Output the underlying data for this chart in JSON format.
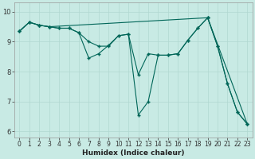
{
  "xlabel": "Humidex (Indice chaleur)",
  "bg_color": "#c8eae4",
  "grid_color": "#b0d8d0",
  "line_color": "#006658",
  "xlim": [
    -0.5,
    23.5
  ],
  "ylim": [
    5.8,
    10.3
  ],
  "xticks": [
    0,
    1,
    2,
    3,
    4,
    5,
    6,
    7,
    8,
    9,
    10,
    11,
    12,
    13,
    14,
    15,
    16,
    17,
    18,
    19,
    20,
    21,
    22,
    23
  ],
  "yticks": [
    6,
    7,
    8,
    9,
    10
  ],
  "line1_x": [
    0,
    1,
    2,
    3,
    4,
    5,
    6,
    7,
    8,
    9,
    10,
    11,
    12,
    13,
    14,
    15,
    16,
    17,
    18,
    19,
    20,
    21,
    22,
    23
  ],
  "line1_y": [
    9.35,
    9.65,
    9.55,
    9.5,
    9.45,
    9.45,
    9.3,
    9.0,
    8.85,
    8.85,
    9.2,
    9.25,
    6.55,
    7.0,
    8.55,
    8.55,
    8.6,
    9.05,
    9.45,
    9.8,
    8.85,
    7.6,
    6.65,
    6.25
  ],
  "line2_x": [
    0,
    1,
    2,
    3,
    4,
    5,
    6,
    7,
    8,
    9,
    10,
    11,
    12,
    13,
    14,
    15,
    16,
    17,
    18,
    19,
    20,
    21,
    22,
    23
  ],
  "line2_y": [
    9.35,
    9.65,
    9.55,
    9.5,
    9.45,
    9.45,
    9.3,
    8.45,
    8.6,
    8.88,
    9.2,
    9.25,
    7.9,
    8.6,
    8.55,
    8.55,
    8.6,
    9.05,
    9.45,
    9.8,
    8.85,
    7.6,
    6.65,
    6.25
  ],
  "line3_x": [
    0,
    1,
    2,
    3,
    19,
    23
  ],
  "line3_y": [
    9.35,
    9.65,
    9.55,
    9.5,
    9.8,
    6.25
  ]
}
